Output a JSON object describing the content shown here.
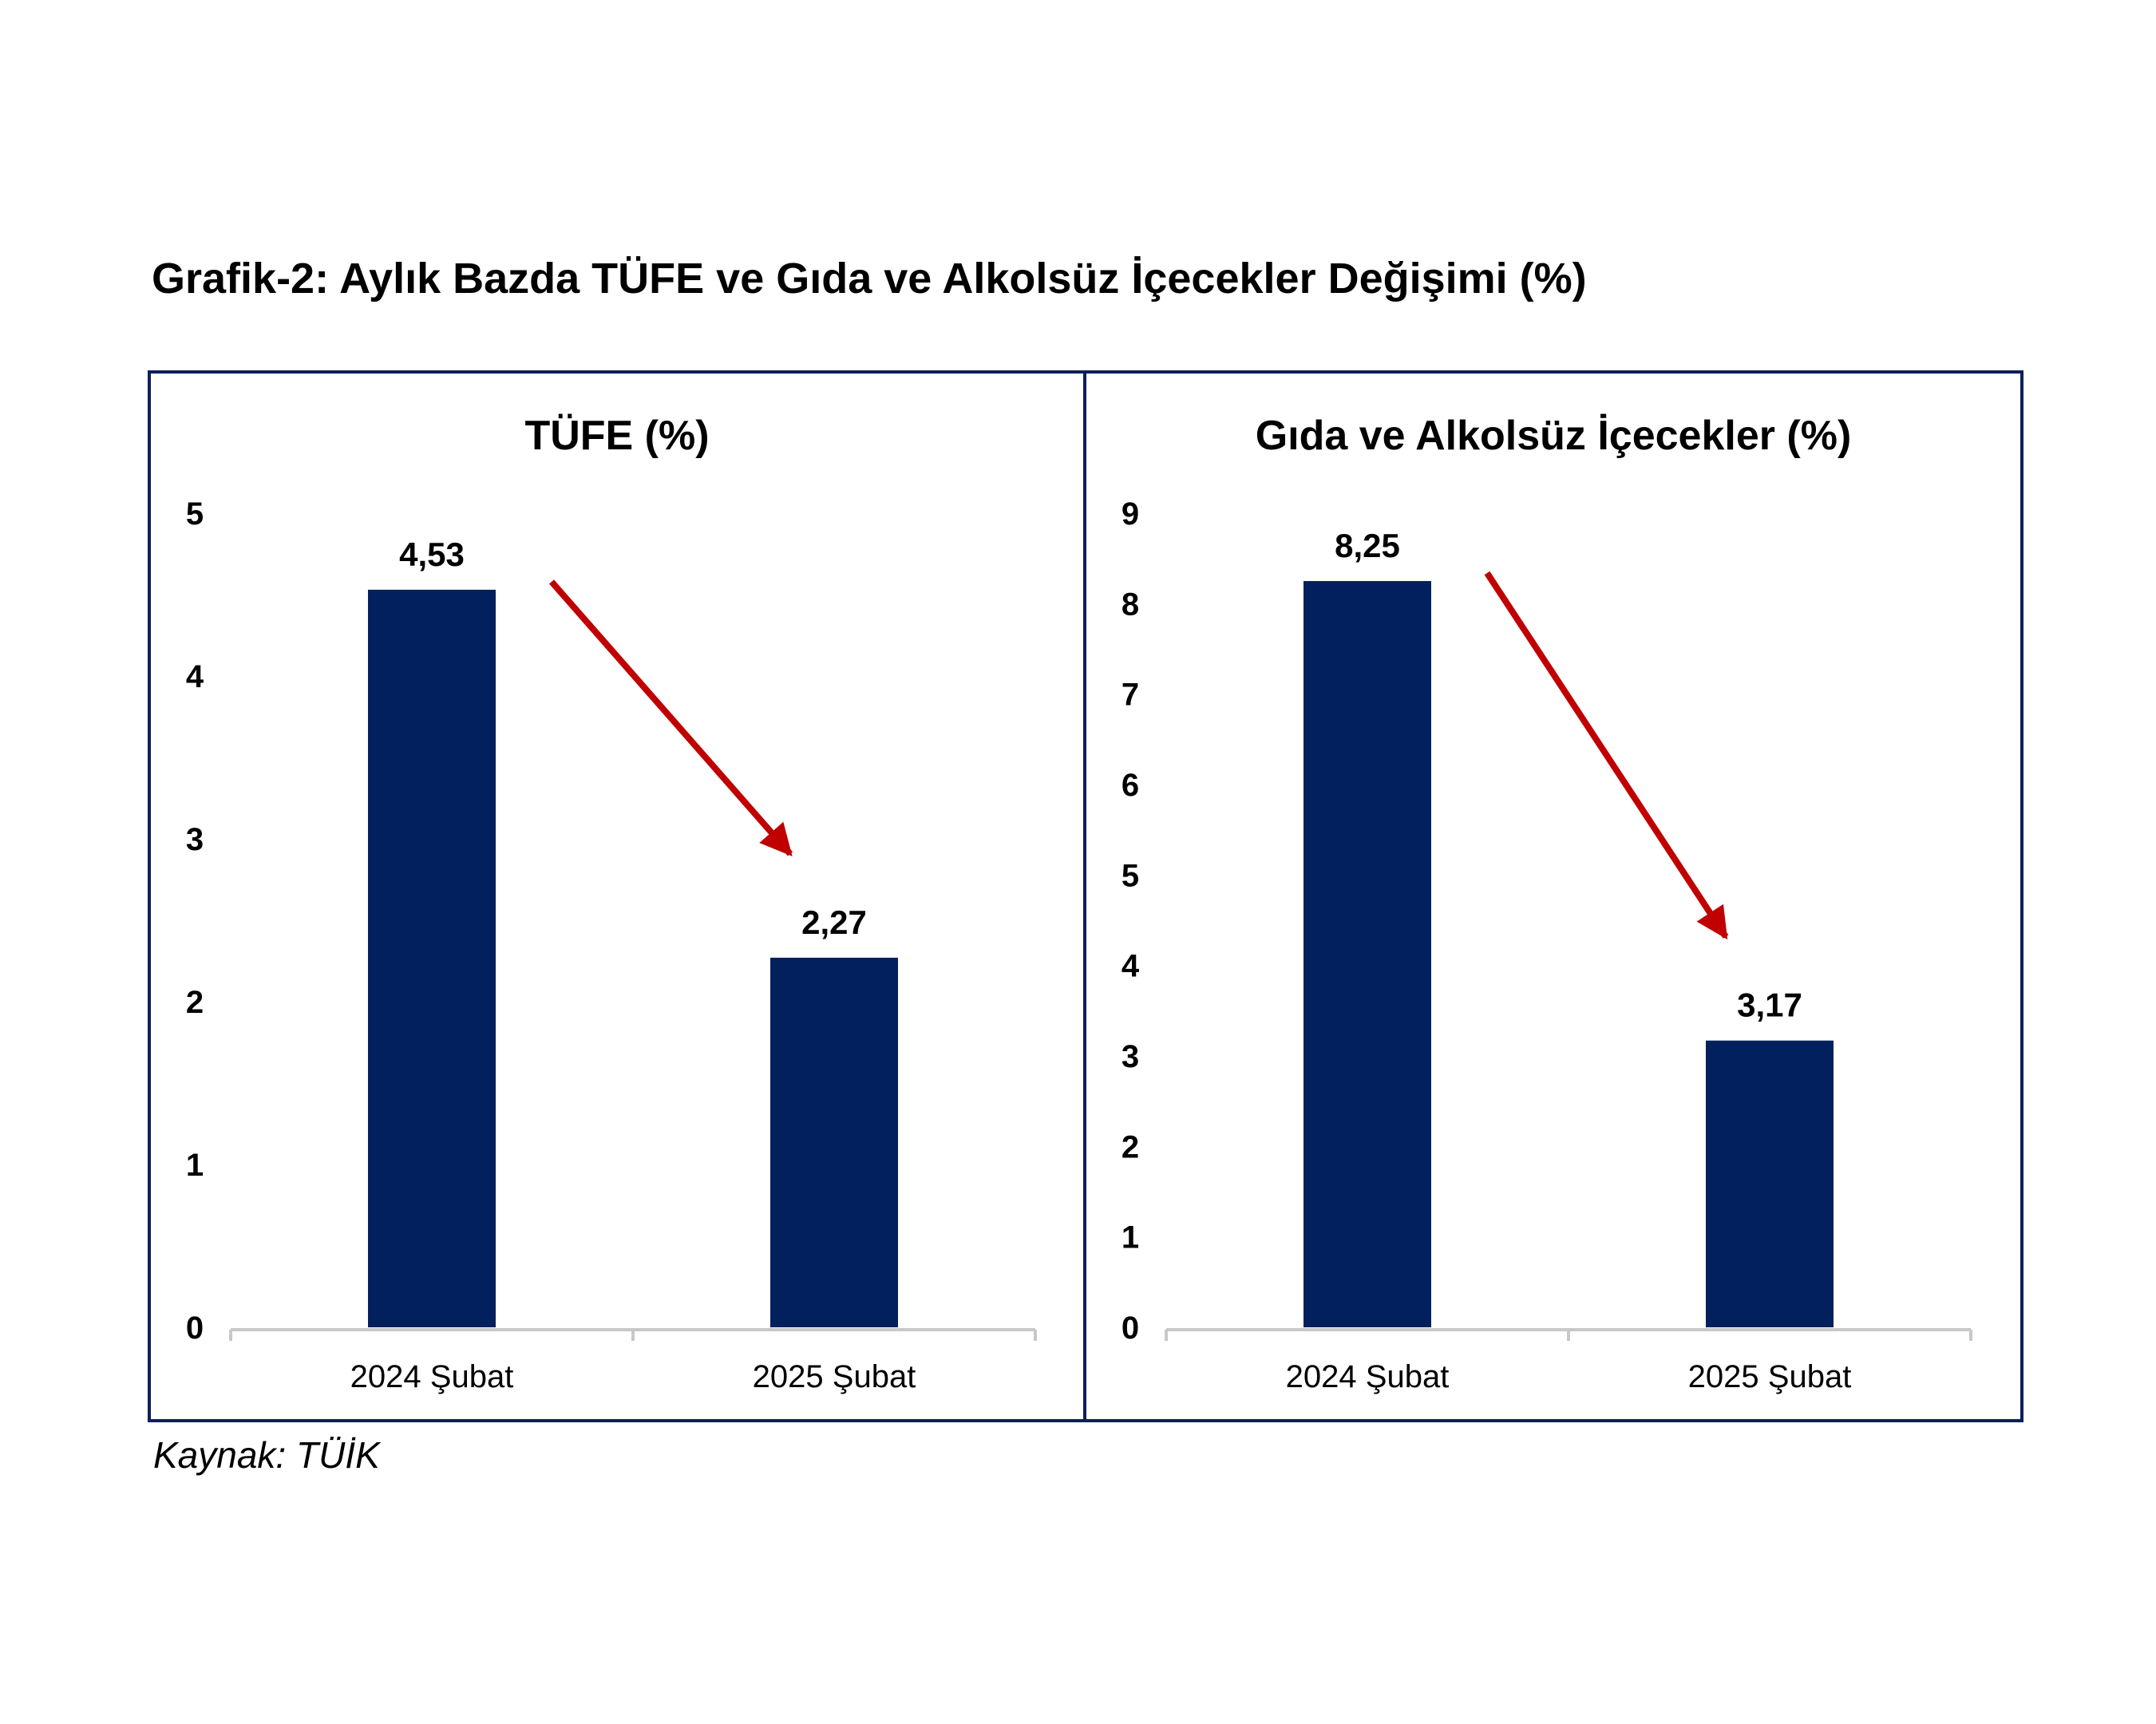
{
  "page": {
    "title": "Grafik-2: Aylık Bazda TÜFE ve Gıda ve Alkolsüz İçecekler Değişimi (%)",
    "source": "Kaynak: TÜİK"
  },
  "colors": {
    "bar": "#03205e",
    "arrow": "#c00000",
    "frame": "#0d1f5c",
    "axis": "#c8c8c8"
  },
  "chart_data": [
    {
      "type": "bar",
      "title": "TÜFE (%)",
      "categories": [
        "2024 Şubat",
        "2025 Şubat"
      ],
      "values": [
        4.53,
        2.27
      ],
      "value_labels": [
        "4,53",
        "2,27"
      ],
      "ylim": [
        0,
        5
      ],
      "yticks": [
        0,
        1,
        2,
        3,
        4,
        5
      ],
      "xlabel": "",
      "ylabel": "",
      "grid": false,
      "legend": "none",
      "annotation": "arrow-down-from-first-to-second"
    },
    {
      "type": "bar",
      "title": "Gıda ve Alkolsüz İçecekler (%)",
      "categories": [
        "2024 Şubat",
        "2025 Şubat"
      ],
      "values": [
        8.25,
        3.17
      ],
      "value_labels": [
        "8,25",
        "3,17"
      ],
      "ylim": [
        0,
        9
      ],
      "yticks": [
        0,
        1,
        2,
        3,
        4,
        5,
        6,
        7,
        8,
        9
      ],
      "xlabel": "",
      "ylabel": "",
      "grid": false,
      "legend": "none",
      "annotation": "arrow-down-from-first-to-second"
    }
  ]
}
